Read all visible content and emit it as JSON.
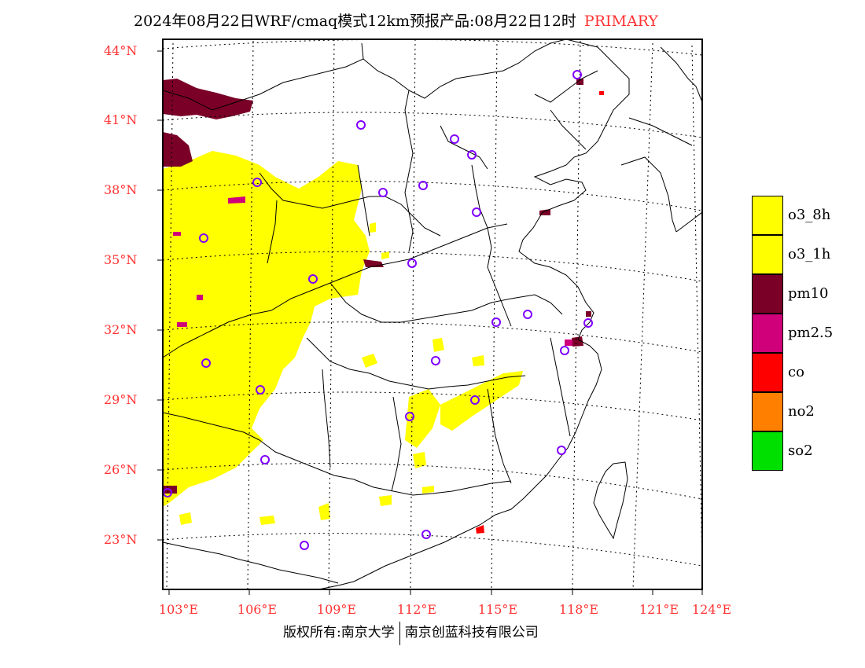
{
  "title": {
    "main": "2024年08月22日WRF/cmaq模式12km预报产品:08月22日12时",
    "tag": "PRIMARY"
  },
  "axes": {
    "lat_labels": [
      "44°N",
      "41°N",
      "38°N",
      "35°N",
      "32°N",
      "29°N",
      "26°N",
      "23°N"
    ],
    "lon_labels": [
      "103°E",
      "106°E",
      "109°E",
      "112°E",
      "115°E",
      "118°E",
      "121°E",
      "124°E"
    ]
  },
  "legend": [
    {
      "label": "o3_8h",
      "color": "#ffff00"
    },
    {
      "label": "o3_1h",
      "color": "#ffff00"
    },
    {
      "label": "pm10",
      "color": "#7a0028"
    },
    {
      "label": "pm2.5",
      "color": "#d0007a"
    },
    {
      "label": "co",
      "color": "#ff0000"
    },
    {
      "label": "no2",
      "color": "#ff8000"
    },
    {
      "label": "so2",
      "color": "#00e000"
    }
  ],
  "footer": {
    "left": "版权所有:南京大学",
    "right": "南京创蓝科技有限公司"
  }
}
